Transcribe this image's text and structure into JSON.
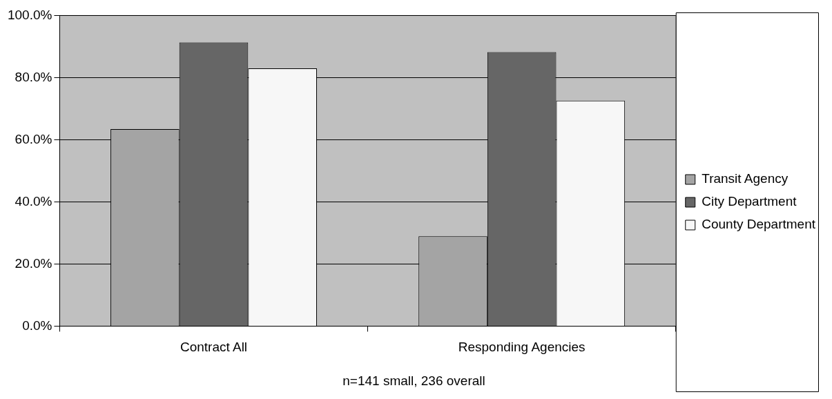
{
  "chart_data": {
    "type": "bar",
    "categories": [
      "Contract All",
      "Responding Agencies"
    ],
    "series": [
      {
        "name": "Transit Agency",
        "color": "#a4a4a4",
        "values": [
          63.4,
          28.9
        ]
      },
      {
        "name": "City Department",
        "color": "#666666",
        "values": [
          91.3,
          88.2
        ]
      },
      {
        "name": "County Department",
        "color": "#f7f7f7",
        "values": [
          83.0,
          72.6
        ]
      }
    ],
    "ylim": [
      0,
      100
    ],
    "yticks": [
      {
        "value": 0,
        "label": "0.0%"
      },
      {
        "value": 20,
        "label": "20.0%"
      },
      {
        "value": 40,
        "label": "40.0%"
      },
      {
        "value": 60,
        "label": "60.0%"
      },
      {
        "value": 80,
        "label": "80.0%"
      },
      {
        "value": 100,
        "label": "100.0%"
      }
    ],
    "grid": "y",
    "legend": "right",
    "annotations": [
      "n=141 small, 236 overall"
    ]
  }
}
